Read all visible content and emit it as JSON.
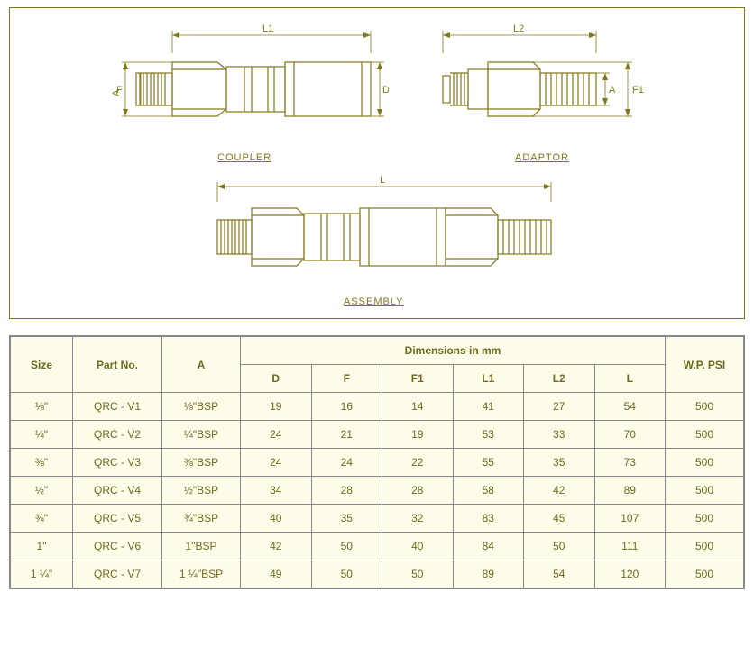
{
  "diagram": {
    "coupler_label": "COUPLER",
    "adaptor_label": "ADAPTOR",
    "assembly_label": "ASSEMBLY",
    "dims": {
      "L1": "L1",
      "L2": "L2",
      "L": "L",
      "F": "F",
      "F1": "F1",
      "A": "A",
      "D": "D"
    },
    "stroke": "#827717"
  },
  "table": {
    "headers": {
      "size": "Size",
      "part": "Part No.",
      "a": "A",
      "dim_group": "Dimensions in mm",
      "D": "D",
      "F": "F",
      "F1": "F1",
      "L1": "L1",
      "L2": "L2",
      "L": "L",
      "wp": "W.P. PSI"
    },
    "rows": [
      {
        "size": "⅛\"",
        "part": "QRC - V1",
        "a": "⅛\"BSP",
        "D": "19",
        "F": "16",
        "F1": "14",
        "L1": "41",
        "L2": "27",
        "L": "54",
        "wp": "500"
      },
      {
        "size": "¼\"",
        "part": "QRC - V2",
        "a": "¼\"BSP",
        "D": "24",
        "F": "21",
        "F1": "19",
        "L1": "53",
        "L2": "33",
        "L": "70",
        "wp": "500"
      },
      {
        "size": "⅜\"",
        "part": "QRC - V3",
        "a": "⅜\"BSP",
        "D": "24",
        "F": "24",
        "F1": "22",
        "L1": "55",
        "L2": "35",
        "L": "73",
        "wp": "500"
      },
      {
        "size": "½\"",
        "part": "QRC - V4",
        "a": "½\"BSP",
        "D": "34",
        "F": "28",
        "F1": "28",
        "L1": "58",
        "L2": "42",
        "L": "89",
        "wp": "500"
      },
      {
        "size": "¾\"",
        "part": "QRC - V5",
        "a": "¾\"BSP",
        "D": "40",
        "F": "35",
        "F1": "32",
        "L1": "83",
        "L2": "45",
        "L": "107",
        "wp": "500"
      },
      {
        "size": "1\"",
        "part": "QRC - V6",
        "a": "1\"BSP",
        "D": "42",
        "F": "50",
        "F1": "40",
        "L1": "84",
        "L2": "50",
        "L": "111",
        "wp": "500"
      },
      {
        "size": "1 ¼\"",
        "part": "QRC - V7",
        "a": "1 ¼\"BSP",
        "D": "49",
        "F": "50",
        "F1": "50",
        "L1": "89",
        "L2": "54",
        "L": "120",
        "wp": "500"
      }
    ],
    "cell_bg": "#fdfce9",
    "text_color": "#6d6a1e",
    "border_color": "#888888"
  }
}
